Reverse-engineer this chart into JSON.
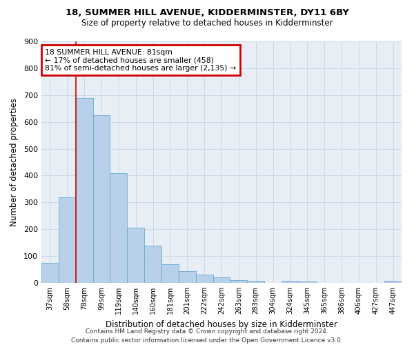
{
  "title": "18, SUMMER HILL AVENUE, KIDDERMINSTER, DY11 6BY",
  "subtitle": "Size of property relative to detached houses in Kidderminster",
  "xlabel": "Distribution of detached houses by size in Kidderminster",
  "ylabel": "Number of detached properties",
  "footer_line1": "Contains HM Land Registry data © Crown copyright and database right 2024.",
  "footer_line2": "Contains public sector information licensed under the Open Government Licence v3.0.",
  "categories": [
    "37sqm",
    "58sqm",
    "78sqm",
    "99sqm",
    "119sqm",
    "140sqm",
    "160sqm",
    "181sqm",
    "201sqm",
    "222sqm",
    "242sqm",
    "263sqm",
    "283sqm",
    "304sqm",
    "324sqm",
    "345sqm",
    "365sqm",
    "386sqm",
    "406sqm",
    "427sqm",
    "447sqm"
  ],
  "values": [
    75,
    320,
    690,
    625,
    410,
    205,
    140,
    70,
    45,
    32,
    20,
    11,
    8,
    0,
    8,
    5,
    0,
    0,
    0,
    0,
    8
  ],
  "bar_color": "#b8d0ea",
  "bar_edge_color": "#6aaad4",
  "ylim": [
    0,
    900
  ],
  "yticks": [
    0,
    100,
    200,
    300,
    400,
    500,
    600,
    700,
    800,
    900
  ],
  "vline_x": 1.5,
  "annotation_title": "18 SUMMER HILL AVENUE: 81sqm",
  "annotation_line1": "← 17% of detached houses are smaller (458)",
  "annotation_line2": "81% of semi-detached houses are larger (2,135) →",
  "annotation_box_color": "#ffffff",
  "annotation_box_edge": "#cc0000",
  "grid_color": "#cdd8e8",
  "background_color": "#e8eef5"
}
